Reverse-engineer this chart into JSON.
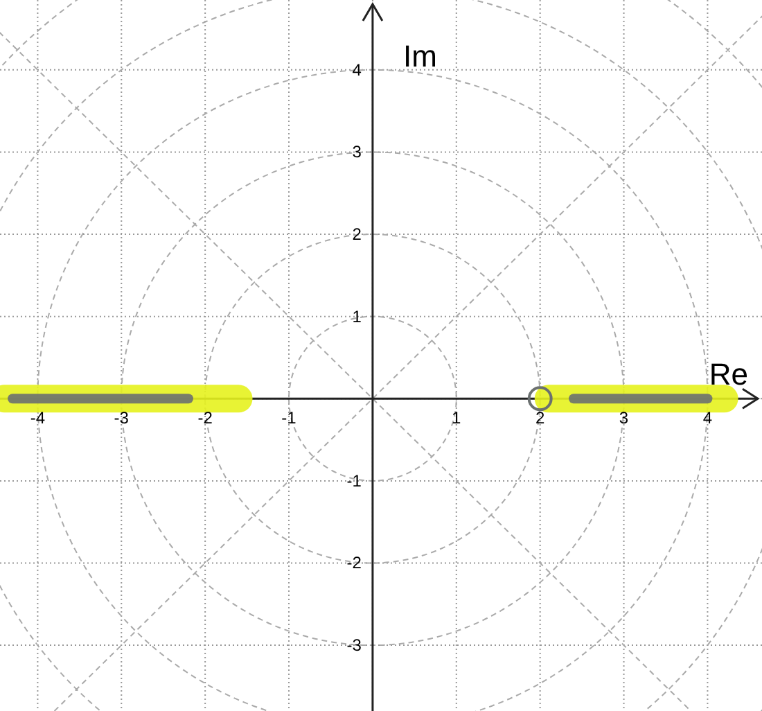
{
  "chart_data": {
    "type": "line",
    "xlabel": "Re",
    "ylabel": "Im",
    "xlim": [
      -4.45,
      4.65
    ],
    "ylim": [
      -3.8,
      4.85
    ],
    "xticks": [
      -4,
      -3,
      -2,
      -1,
      {
        "value": 0,
        "label": null
      },
      1,
      2,
      3,
      4
    ],
    "yticks": [
      -3,
      -2,
      -1,
      {
        "value": 0,
        "label": null
      },
      1,
      2,
      3,
      4
    ],
    "grid": true,
    "line_style": "solid",
    "series": [
      {
        "color": "#e6f21e",
        "x": [
          -4.4,
          -1.6
        ],
        "values": [
          0,
          0
        ]
      },
      {
        "color": "#e6f21e",
        "x": [
          2.1,
          4.2
        ],
        "values": [
          0,
          0
        ]
      },
      {
        "color": "#6b7070",
        "x": [
          -4.3,
          -2.2
        ],
        "values": [
          0,
          0
        ]
      },
      {
        "color": "#6b7070",
        "x": [
          2.4,
          4
        ],
        "values": [
          0,
          0
        ]
      },
      {
        "type": "scatter",
        "marker": "circle",
        "color": "#6b7070",
        "x": [
          2
        ],
        "values": [
          0
        ]
      }
    ]
  }
}
